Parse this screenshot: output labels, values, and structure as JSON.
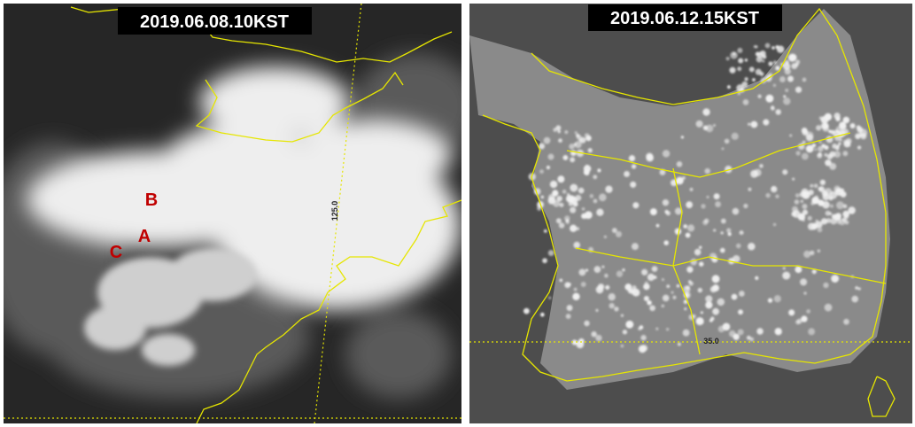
{
  "panels": [
    {
      "timestamp": "2019.06.08.10KST",
      "markers": [
        "B",
        "A",
        "C"
      ],
      "grid_label": "125.0"
    },
    {
      "timestamp": "2019.06.12.15KST",
      "grid_label": "35.0"
    }
  ]
}
